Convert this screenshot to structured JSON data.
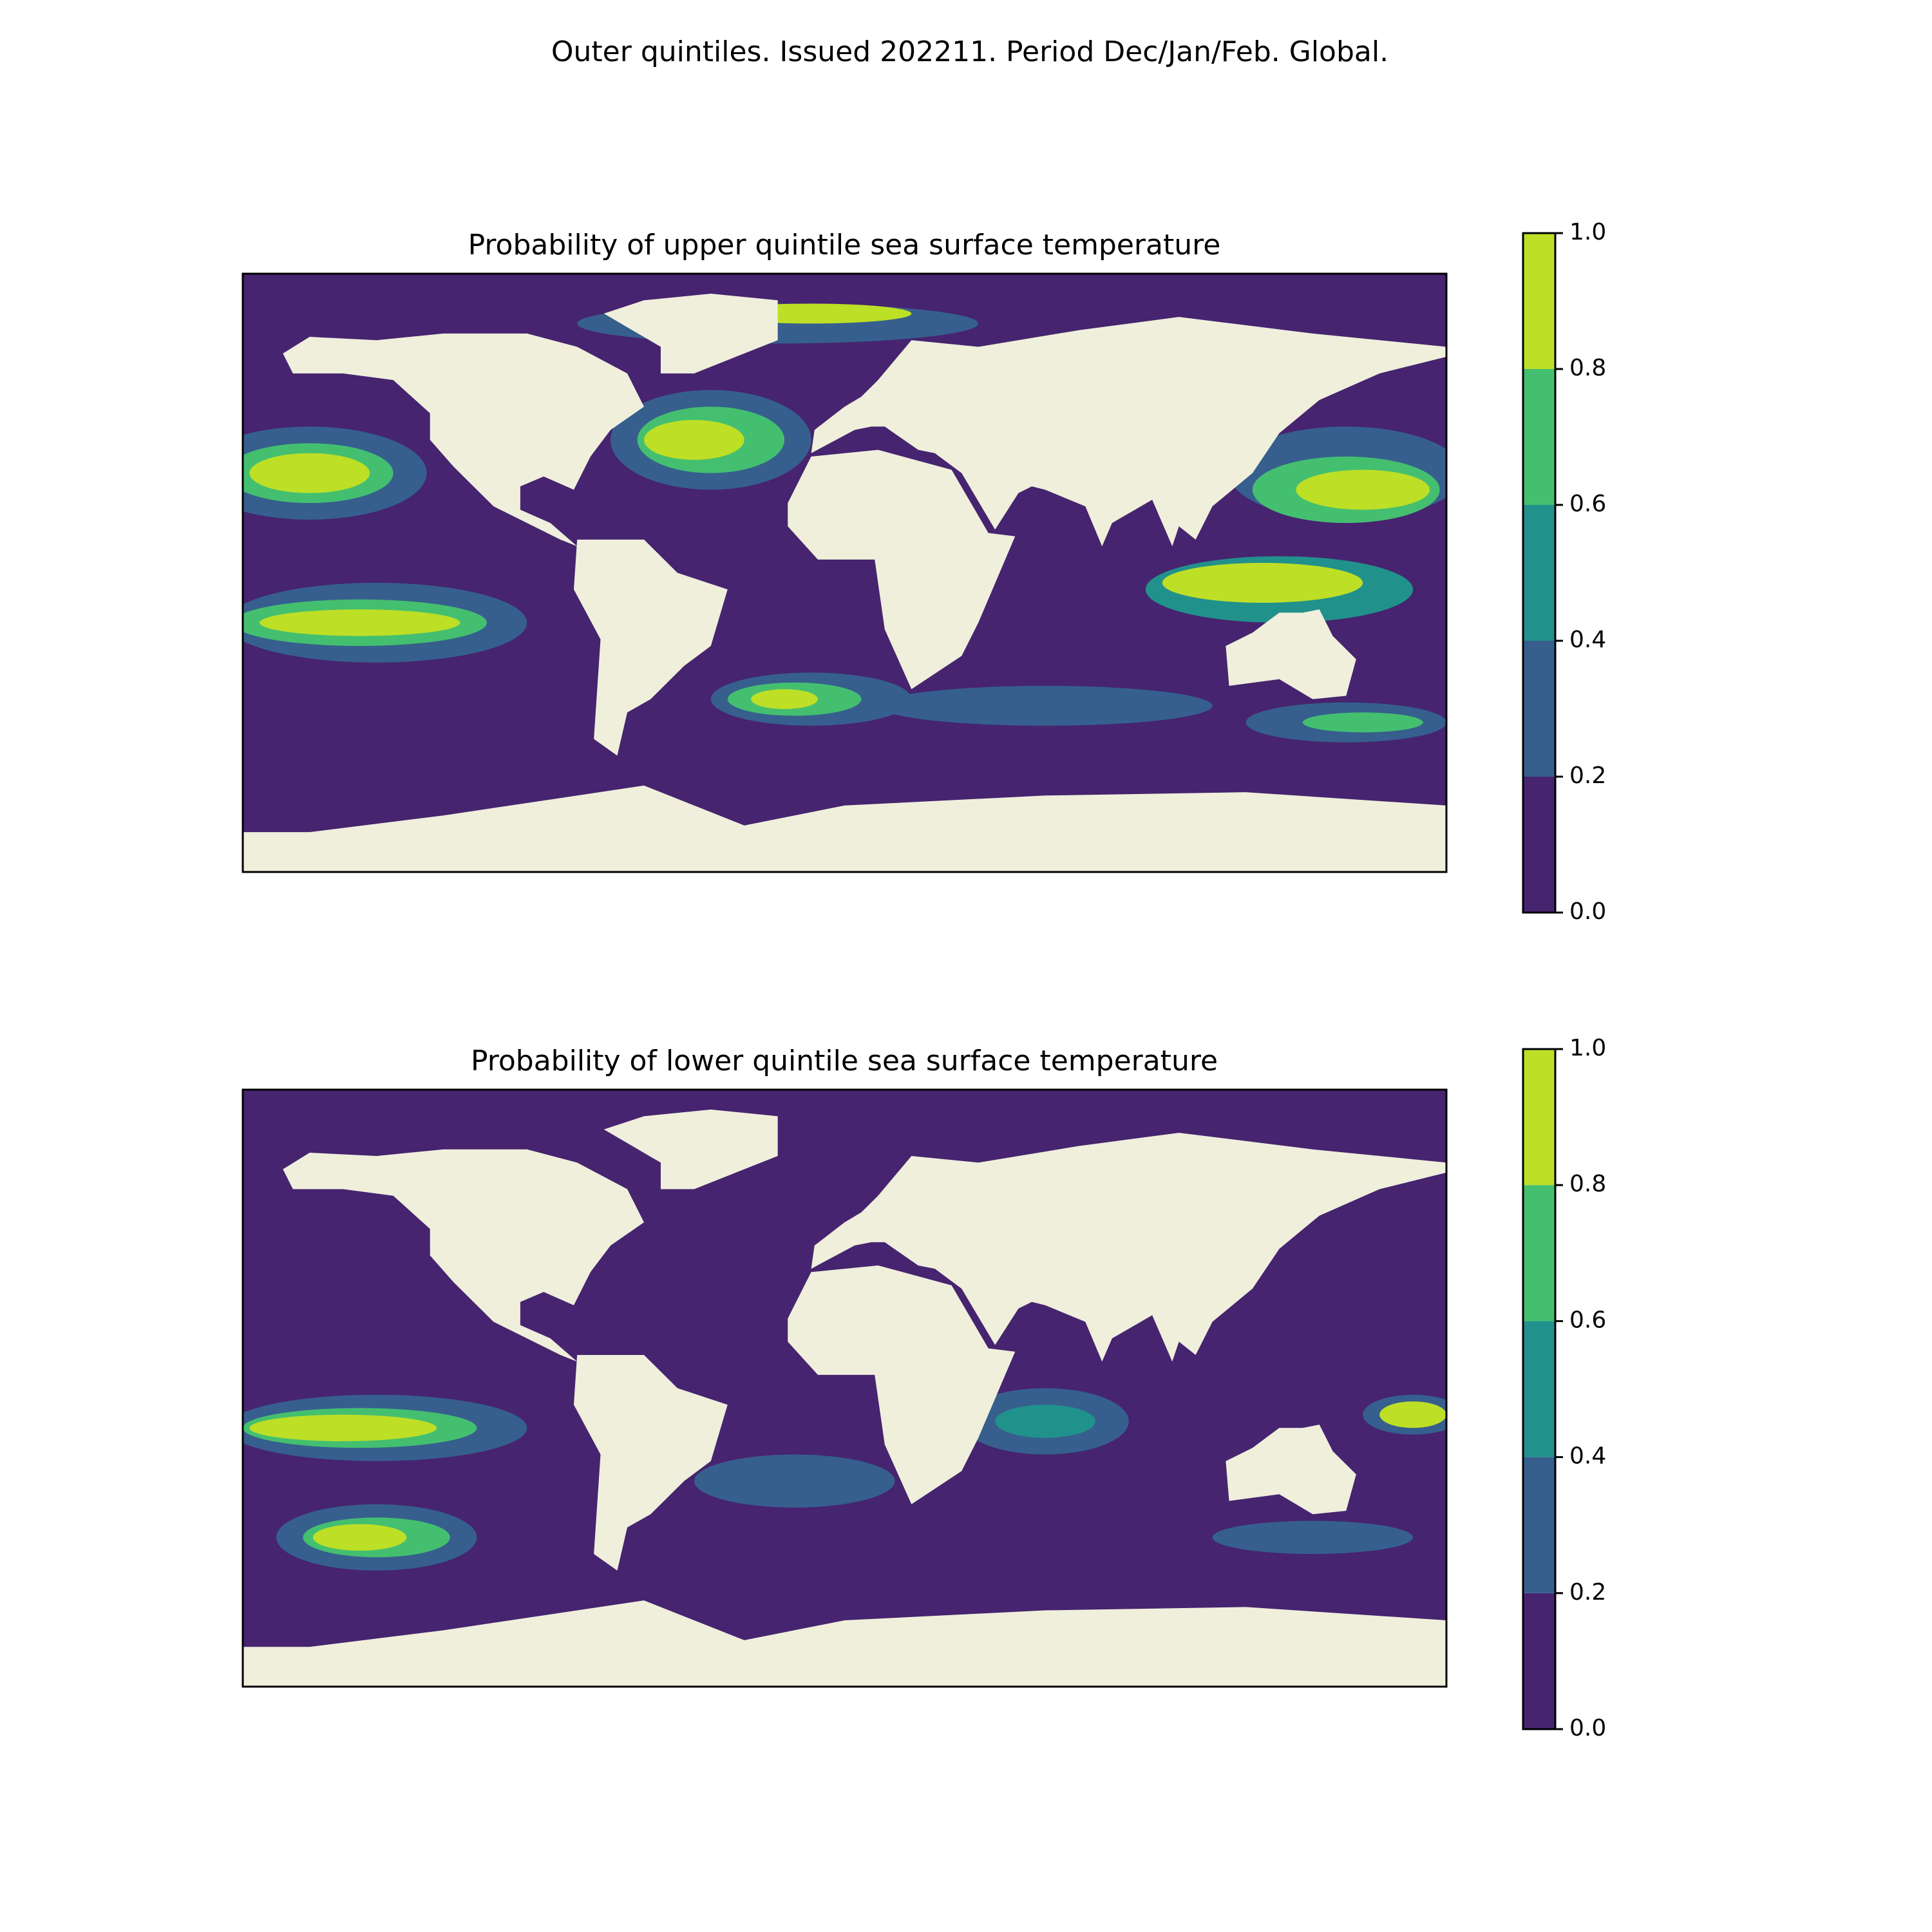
{
  "title": "Outer quintiles. Issued 202211. Period Dec/Jan/Feb. Global.",
  "colors": [
    "#46246f",
    "#365f8d",
    "#21918c",
    "#44bf70",
    "#bddf26"
  ],
  "land_color": "#efefdc",
  "panels": [
    {
      "title": "Probability of upper quintile sea surface temperature",
      "colorbar_ticks": [
        {
          "value": 0,
          "label": "0.0"
        },
        0.2,
        0.4,
        0.6,
        0.8,
        {
          "value": 1,
          "label": "1.0"
        }
      ]
    },
    {
      "title": "Probability of lower quintile sea surface temperature",
      "colorbar_ticks": [
        {
          "value": 0,
          "label": "0.0"
        },
        0.2,
        0.4,
        0.6,
        0.8,
        {
          "value": 1,
          "label": "1.0"
        }
      ]
    }
  ]
}
